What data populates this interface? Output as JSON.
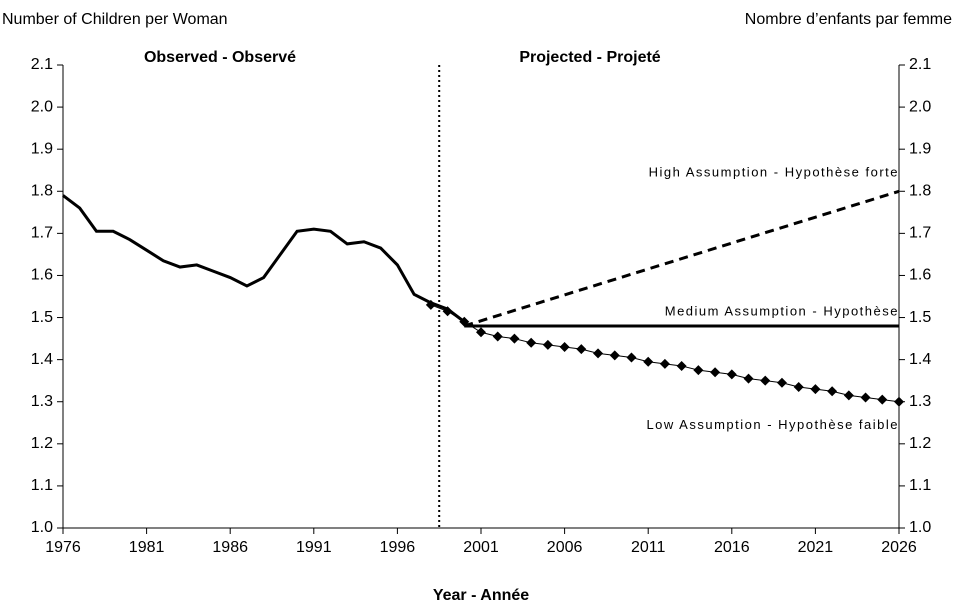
{
  "chart_data": {
    "type": "line",
    "y_label_left": "Number of Children per Woman",
    "y_label_right": "Nombre d’enfants par femme",
    "x_label": "Year - Année",
    "annotations": [
      "Observed - Observé",
      "Projected - Projeté"
    ],
    "xlim": [
      1976,
      2026
    ],
    "xticks": [
      1976,
      1981,
      1986,
      1991,
      1996,
      2001,
      2006,
      2011,
      2016,
      2021,
      2026
    ],
    "ylim": [
      1.0,
      2.1
    ],
    "yticks": [
      {
        "value": 1.0,
        "label": "1.0"
      },
      1.1,
      1.2,
      1.3,
      1.4,
      1.5,
      1.6,
      1.7,
      1.8,
      1.9,
      {
        "value": 2.0,
        "label": "2.0"
      },
      2.1
    ],
    "divider_x": 1998.5,
    "series": [
      {
        "color": "#000000",
        "style": "solid",
        "width": 3,
        "x": [
          1976,
          1977,
          1978,
          1979,
          1980,
          1981,
          1982,
          1983,
          1984,
          1985,
          1986,
          1987,
          1988,
          1989,
          1990,
          1991,
          1992,
          1993,
          1994,
          1995,
          1996,
          1997,
          1998,
          1999,
          2000
        ],
        "values": [
          1.79,
          1.76,
          1.705,
          1.705,
          1.685,
          1.66,
          1.635,
          1.62,
          1.625,
          1.61,
          1.595,
          1.575,
          1.595,
          1.65,
          1.705,
          1.71,
          1.705,
          1.675,
          1.68,
          1.665,
          1.625,
          1.555,
          1.535,
          1.52,
          1.49
        ]
      },
      {
        "name": "High Assumption  - Hypothèse forte",
        "color": "#000000",
        "style": "dashed",
        "width": 3,
        "x": [
          2000,
          2026
        ],
        "values": [
          1.48,
          1.8
        ]
      },
      {
        "name": "Medium Assumption - Hypothèse",
        "color": "#000000",
        "style": "solid",
        "width": 3,
        "x": [
          2000,
          2026
        ],
        "values": [
          1.48,
          1.48
        ]
      },
      {
        "name": "Low Assumption - Hypothèse faible",
        "color": "#000000",
        "style": "solid",
        "width": 1,
        "marker": "diamond",
        "x": [
          1998,
          1999,
          2000,
          2001,
          2002,
          2003,
          2004,
          2005,
          2006,
          2007,
          2008,
          2009,
          2010,
          2011,
          2012,
          2013,
          2014,
          2015,
          2016,
          2017,
          2018,
          2019,
          2020,
          2021,
          2022,
          2023,
          2024,
          2025,
          2026
        ],
        "values": [
          1.53,
          1.515,
          1.49,
          1.465,
          1.455,
          1.45,
          1.44,
          1.435,
          1.43,
          1.425,
          1.415,
          1.41,
          1.405,
          1.395,
          1.39,
          1.385,
          1.375,
          1.37,
          1.365,
          1.355,
          1.35,
          1.345,
          1.335,
          1.33,
          1.325,
          1.315,
          1.31,
          1.305,
          1.3
        ]
      }
    ]
  }
}
